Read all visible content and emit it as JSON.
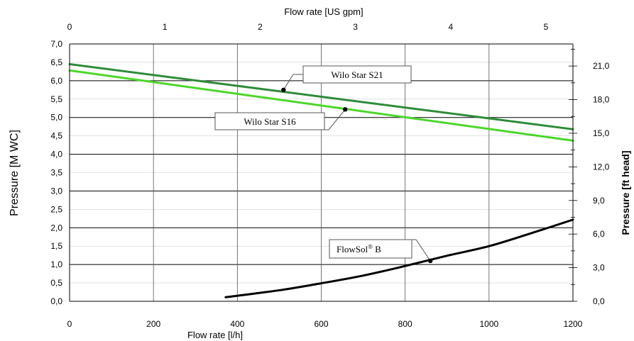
{
  "chart_data": {
    "type": "line",
    "xlabel": "Flow rate [l/h]",
    "x2label": "Flow rate [US gpm]",
    "ylabel": "Pressure [M WC]",
    "y2label": "Pressure [ft head]",
    "xlim": [
      0,
      1200
    ],
    "x2lim": [
      0,
      5.283
    ],
    "ylim": [
      0,
      7.0
    ],
    "y2lim": [
      0,
      22.97
    ],
    "x_ticks": [
      "0",
      "200",
      "400",
      "600",
      "800",
      "1000",
      "1200"
    ],
    "x2_ticks": [
      "0",
      "1",
      "2",
      "3",
      "4",
      "5"
    ],
    "y_ticks": [
      "0,0",
      "0,5",
      "1,0",
      "1,5",
      "2,0",
      "2,5",
      "3,0",
      "3,5",
      "4,0",
      "4,5",
      "5,0",
      "5,5",
      "6,0",
      "6,5",
      "7,0"
    ],
    "y2_ticks": [
      "0,0",
      "3,0",
      "6,0",
      "9,0",
      "12,0",
      "15,0",
      "18,0",
      "21,0"
    ],
    "grid": true,
    "series": [
      {
        "name": "Wilo Star S21",
        "color": "#2e8b3a",
        "x": [
          0,
          1200
        ],
        "y": [
          6.45,
          4.68
        ],
        "marker_x": 510,
        "marker_y": 5.75
      },
      {
        "name": "Wilo Star S16",
        "color": "#4cd62a",
        "x": [
          0,
          1200
        ],
        "y": [
          6.28,
          4.37
        ],
        "marker_x": 657,
        "marker_y": 5.22
      },
      {
        "name": "FlowSol® B",
        "color": "#000000",
        "x": [
          372,
          500,
          600,
          700,
          800,
          900,
          1000,
          1100,
          1200
        ],
        "y": [
          0.11,
          0.3,
          0.49,
          0.7,
          0.96,
          1.24,
          1.5,
          1.85,
          2.22
        ],
        "marker_x": 860,
        "marker_y": 1.1
      }
    ],
    "annotations": [
      {
        "text": "Wilo Star S21",
        "series_index": 0
      },
      {
        "text": "Wilo Star S16",
        "series_index": 1
      },
      {
        "text_main": "FlowSol",
        "text_sup": "®",
        "text_tail": " B",
        "series_index": 2
      }
    ]
  }
}
